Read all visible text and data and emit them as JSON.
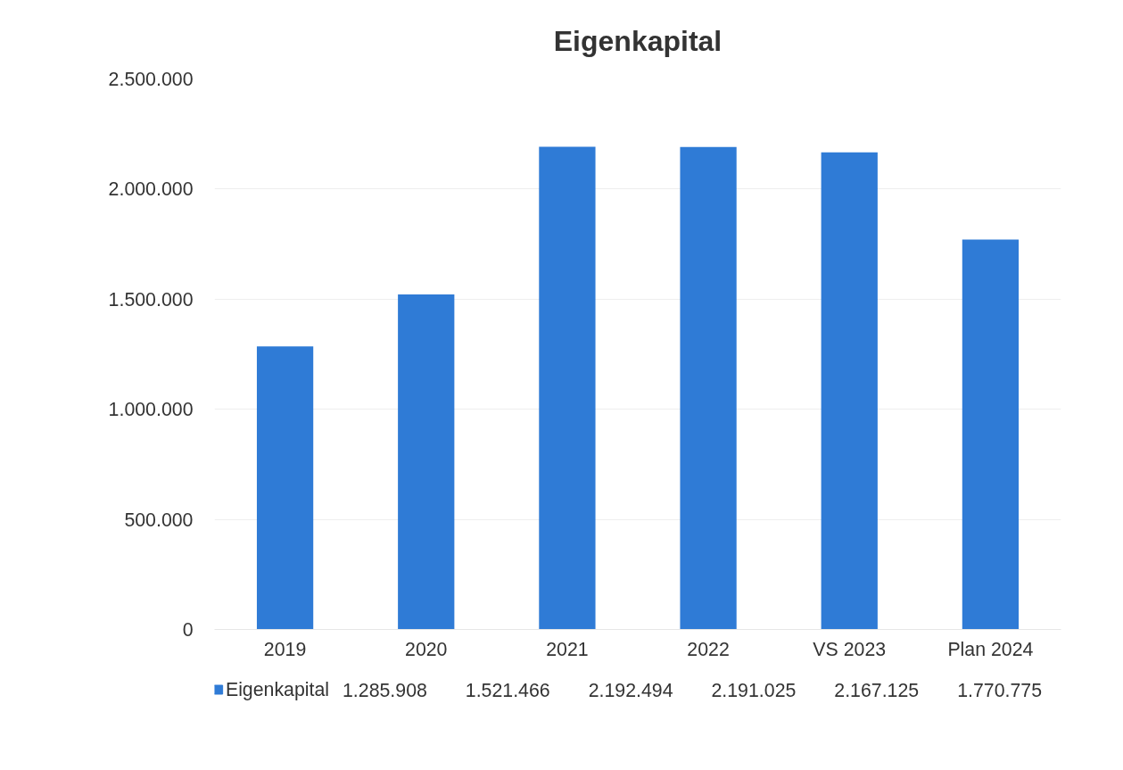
{
  "chart_data": {
    "type": "bar",
    "title": "Eigenkapital",
    "categories": [
      "2019",
      "2020",
      "2021",
      "2022",
      "VS 2023",
      "Plan 2024"
    ],
    "series": [
      {
        "name": "Eigenkapital",
        "color": "#2f7bd6",
        "values": [
          1285908,
          1521466,
          2192494,
          2191025,
          2167125,
          1770775
        ]
      }
    ],
    "ylim": [
      0,
      2500000
    ],
    "yticks": [
      0,
      {
        "value": 500000,
        "label": "500.000"
      },
      {
        "value": 1000000,
        "label": "1.000.000"
      },
      {
        "value": 1500000,
        "label": "1.500.000"
      },
      {
        "value": 2000000,
        "label": "2.000.000"
      },
      {
        "value": 2500000,
        "label": "2.500.000"
      }
    ],
    "value_labels": [
      "1.285.908",
      "1.521.466",
      "2.192.494",
      "2.191.025",
      "2.167.125",
      "1.770.775"
    ],
    "grid": "y",
    "legend": "bottom left"
  }
}
